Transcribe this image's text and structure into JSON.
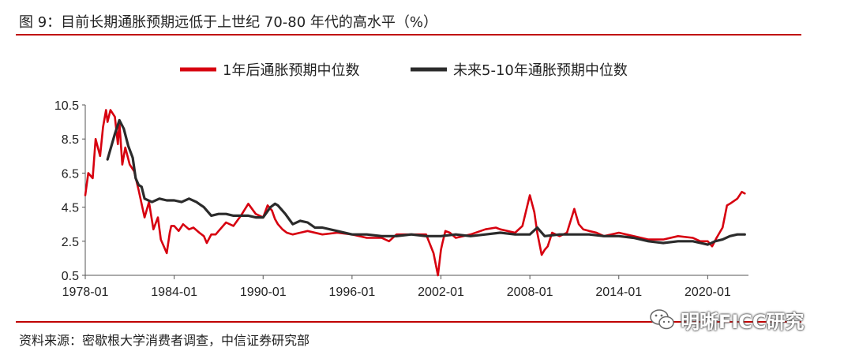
{
  "title": "图 9：目前长期通胀预期远低于上世纪 70-80 年代的高水平（%）",
  "source": "资料来源：密歇根大学消费者调查，中信证券研究部",
  "watermark": "明晰FICC研究",
  "chart_data": {
    "type": "line",
    "title": "图 9：目前长期通胀预期远低于上世纪 70-80 年代的高水平（%）",
    "xlabel": "",
    "ylabel": "",
    "ylim": [
      0.5,
      10.5
    ],
    "yticks": [
      "0.5",
      "2.5",
      "4.5",
      "6.5",
      "8.5",
      "10.5"
    ],
    "xlim": [
      1978.0,
      2022.75
    ],
    "xticks": [
      "1978-01",
      "1984-01",
      "1990-01",
      "1996-01",
      "2002-01",
      "2008-01",
      "2014-01",
      "2020-01"
    ],
    "grid": false,
    "legend_position": "top-center",
    "series": [
      {
        "name": "1年后通胀预期中位数",
        "color": "#d7000f",
        "x": [
          1978.0,
          1978.2,
          1978.5,
          1978.7,
          1979.0,
          1979.2,
          1979.4,
          1979.5,
          1979.7,
          1980.0,
          1980.2,
          1980.3,
          1980.5,
          1980.7,
          1981.0,
          1981.3,
          1981.6,
          1982.0,
          1982.3,
          1982.6,
          1982.9,
          1983.1,
          1983.3,
          1983.5,
          1983.7,
          1983.8,
          1984.0,
          1984.3,
          1984.6,
          1985.0,
          1985.3,
          1985.7,
          1986.0,
          1986.2,
          1986.5,
          1986.8,
          1987.0,
          1987.5,
          1988.0,
          1988.5,
          1989.0,
          1989.5,
          1990.0,
          1990.3,
          1990.6,
          1990.8,
          1991.0,
          1991.3,
          1991.6,
          1992.0,
          1993.0,
          1994.0,
          1995.0,
          1996.0,
          1997.0,
          1998.0,
          1998.5,
          1999.0,
          2000.0,
          2001.0,
          2001.5,
          2001.8,
          2002.0,
          2002.1,
          2002.3,
          2002.6,
          2003.0,
          2004.0,
          2005.0,
          2005.7,
          2006.0,
          2007.0,
          2007.5,
          2008.0,
          2008.3,
          2008.5,
          2008.8,
          2009.0,
          2009.2,
          2009.5,
          2010.0,
          2010.5,
          2011.0,
          2011.3,
          2011.6,
          2012.0,
          2012.5,
          2013.0,
          2014.0,
          2015.0,
          2016.0,
          2017.0,
          2018.0,
          2019.0,
          2019.5,
          2020.0,
          2020.3,
          2020.6,
          2021.0,
          2021.3,
          2021.5,
          2022.0,
          2022.3,
          2022.5
        ],
        "values": [
          5.2,
          6.5,
          6.2,
          8.5,
          7.5,
          9.2,
          10.2,
          9.5,
          10.2,
          9.8,
          8.2,
          9.5,
          7.0,
          8.0,
          7.0,
          6.6,
          5.5,
          3.9,
          4.8,
          3.2,
          3.9,
          2.6,
          2.2,
          1.8,
          3.0,
          3.4,
          3.4,
          3.1,
          3.5,
          3.2,
          3.3,
          3.0,
          2.8,
          2.4,
          2.9,
          2.9,
          3.1,
          3.6,
          3.4,
          4.0,
          4.7,
          4.1,
          3.9,
          4.6,
          4.3,
          3.8,
          3.5,
          3.2,
          3.0,
          2.9,
          3.1,
          2.9,
          3.0,
          2.9,
          2.7,
          2.7,
          2.5,
          2.9,
          2.9,
          2.9,
          1.8,
          0.5,
          2.0,
          2.4,
          3.1,
          3.0,
          2.7,
          2.9,
          3.2,
          3.3,
          3.2,
          3.0,
          3.4,
          5.2,
          4.2,
          3.0,
          1.7,
          2.0,
          2.2,
          3.0,
          2.8,
          3.0,
          4.4,
          3.5,
          3.2,
          3.1,
          3.0,
          2.8,
          3.0,
          2.8,
          2.6,
          2.6,
          2.8,
          2.7,
          2.5,
          2.5,
          2.2,
          2.7,
          3.3,
          4.6,
          4.7,
          5.0,
          5.4,
          5.3
        ]
      },
      {
        "name": "未来5-10年通胀预期中位数",
        "color": "#2b2b2b",
        "x": [
          1978.0,
          1978.5,
          1979.0,
          1979.5,
          1980.0,
          1980.3,
          1980.6,
          1980.9,
          1981.2,
          1981.4,
          1981.6,
          1981.8,
          1982.0,
          1982.5,
          1983.0,
          1983.5,
          1984.0,
          1984.5,
          1985.0,
          1985.5,
          1986.0,
          1986.5,
          1987.0,
          1987.5,
          1988.0,
          1988.5,
          1989.0,
          1989.5,
          1990.0,
          1990.5,
          1990.8,
          1991.0,
          1991.5,
          1992.0,
          1992.5,
          1993.0,
          1993.5,
          1994.0,
          1995.0,
          1996.0,
          1997.0,
          1998.0,
          1999.0,
          2000.0,
          2001.0,
          2002.0,
          2003.0,
          2004.0,
          2005.0,
          2006.0,
          2007.0,
          2008.0,
          2008.5,
          2009.0,
          2010.0,
          2011.0,
          2012.0,
          2013.0,
          2014.0,
          2015.0,
          2016.0,
          2017.0,
          2018.0,
          2019.0,
          2020.0,
          2020.5,
          2021.0,
          2021.5,
          2022.0,
          2022.5
        ],
        "values": [
          null,
          null,
          null,
          7.3,
          8.8,
          9.6,
          9.1,
          8.1,
          7.4,
          6.2,
          5.8,
          5.7,
          5.0,
          4.8,
          5.0,
          4.9,
          4.9,
          4.8,
          5.0,
          4.8,
          4.5,
          4.0,
          4.1,
          4.1,
          4.0,
          4.0,
          4.0,
          3.9,
          3.9,
          4.5,
          4.7,
          4.6,
          4.1,
          3.5,
          3.7,
          3.6,
          3.3,
          3.3,
          3.1,
          2.9,
          2.9,
          2.8,
          2.8,
          2.9,
          2.8,
          2.8,
          2.9,
          2.8,
          2.9,
          3.0,
          2.9,
          2.9,
          3.3,
          2.8,
          2.9,
          2.9,
          2.9,
          2.8,
          2.8,
          2.7,
          2.5,
          2.4,
          2.5,
          2.5,
          2.3,
          2.5,
          2.6,
          2.8,
          2.9,
          2.9
        ]
      }
    ]
  }
}
